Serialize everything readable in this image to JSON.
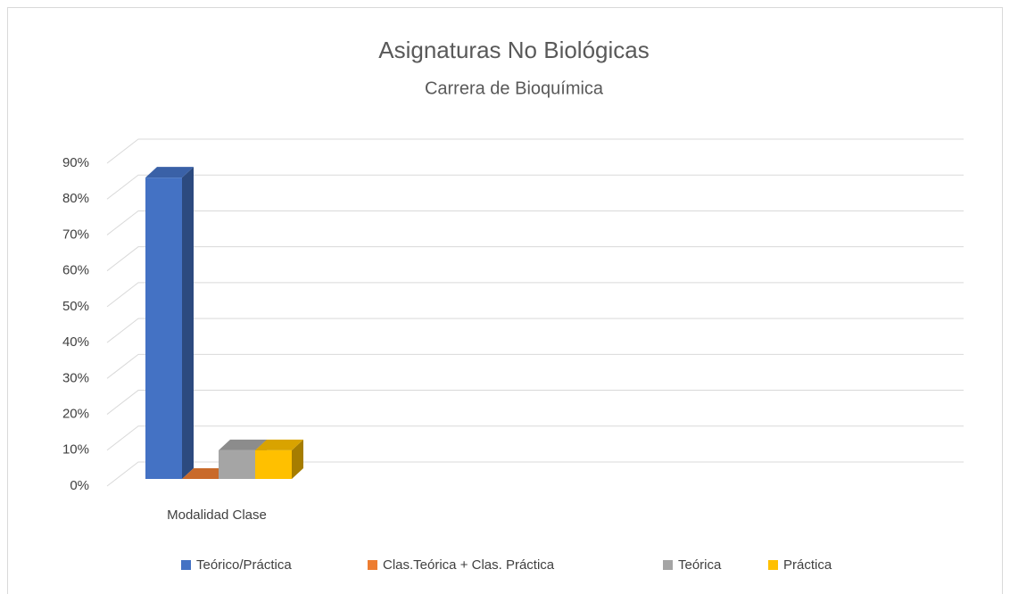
{
  "chart_data": {
    "type": "bar3d",
    "title": "Asignaturas No Biológicas",
    "subtitle": "Carrera de Bioquímica",
    "categories": [
      "Modalidad Clase"
    ],
    "series": [
      {
        "name": "Teórico/Práctica",
        "color": "#4472c4",
        "values": [
          84
        ]
      },
      {
        "name": "Clas.Teórica + Clas. Práctica",
        "color": "#ed7d31",
        "values": [
          0
        ]
      },
      {
        "name": "Teórica",
        "color": "#a5a5a5",
        "values": [
          8
        ]
      },
      {
        "name": "Práctica",
        "color": "#ffc000",
        "values": [
          8
        ]
      }
    ],
    "ylim": [
      0,
      90
    ],
    "yticks": [
      {
        "value": 0,
        "label": "0%"
      },
      {
        "value": 10,
        "label": "10%"
      },
      {
        "value": 20,
        "label": "20%"
      },
      {
        "value": 30,
        "label": "30%"
      },
      {
        "value": 40,
        "label": "40%"
      },
      {
        "value": 50,
        "label": "50%"
      },
      {
        "value": 60,
        "label": "60%"
      },
      {
        "value": 70,
        "label": "70%"
      },
      {
        "value": 80,
        "label": "80%"
      },
      {
        "value": 90,
        "label": "90%"
      }
    ],
    "grid": true,
    "legend": "bottom"
  }
}
